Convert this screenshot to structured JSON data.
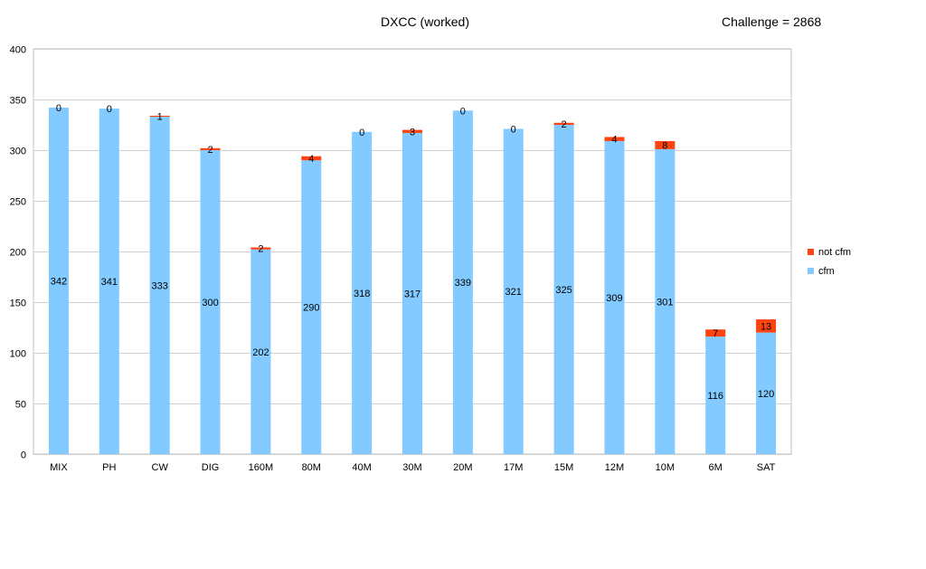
{
  "chart_data": {
    "type": "bar",
    "stacked": true,
    "title": "DXCC (worked)",
    "subtitle": "Challenge = 2868",
    "categories": [
      "MIX",
      "PH",
      "CW",
      "DIG",
      "160M",
      "80M",
      "40M",
      "30M",
      "20M",
      "17M",
      "15M",
      "12M",
      "10M",
      "6M",
      "SAT"
    ],
    "series": [
      {
        "name": "cfm",
        "color": "#82CAFF",
        "values": [
          342,
          341,
          333,
          300,
          202,
          290,
          318,
          317,
          339,
          321,
          325,
          309,
          301,
          116,
          120
        ]
      },
      {
        "name": "not cfm",
        "color": "#FF4411",
        "values": [
          0,
          0,
          1,
          2,
          2,
          4,
          0,
          3,
          0,
          0,
          2,
          4,
          8,
          7,
          13
        ]
      }
    ],
    "ylim": [
      0,
      400
    ],
    "yticks": [
      0,
      50,
      100,
      150,
      200,
      250,
      300,
      350,
      400
    ],
    "grid": true,
    "legend": "right"
  }
}
